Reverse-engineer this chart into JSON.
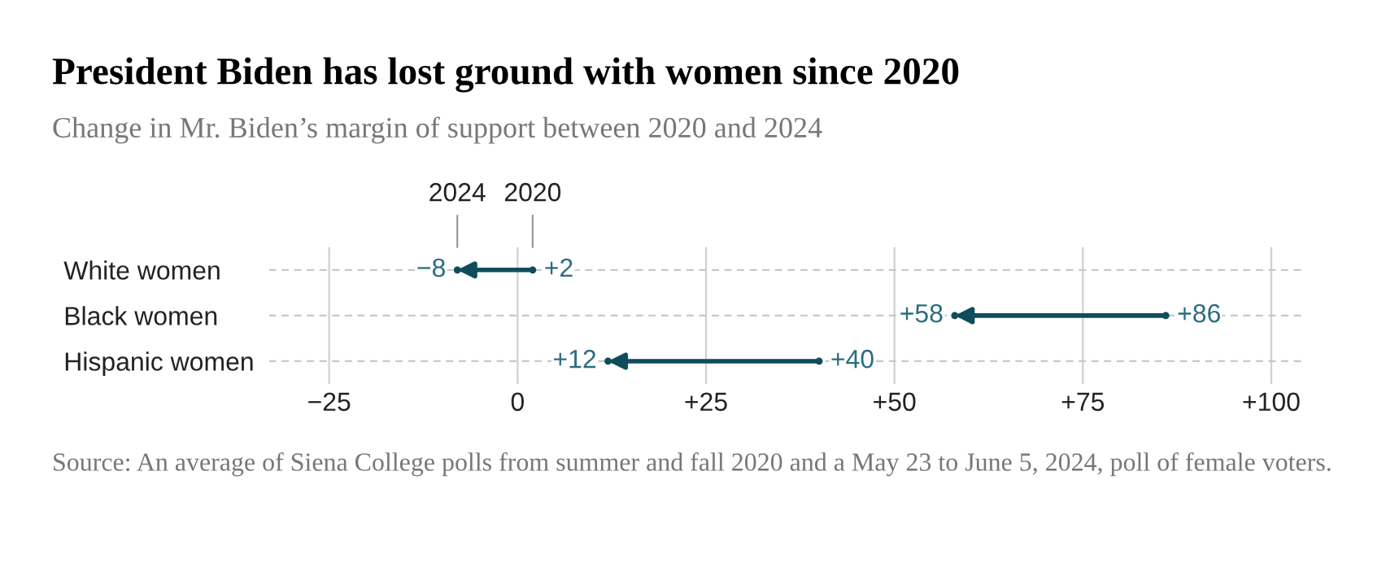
{
  "chart_data": {
    "type": "scatter",
    "title": "President Biden has lost ground with women since 2020",
    "subtitle": "Change in Mr. Biden’s margin of support between 2020 and 2024",
    "categories": [
      "White women",
      "Black women",
      "Hispanic women"
    ],
    "series": [
      {
        "name": "2020",
        "color": "#0f4c5c",
        "values": [
          2,
          86,
          40
        ],
        "value_labels": [
          "+2",
          "+86",
          "+40"
        ]
      },
      {
        "name": "2024",
        "color": "#0f4c5c",
        "values": [
          -8,
          58,
          12
        ],
        "value_labels": [
          "−8",
          "+58",
          "+12"
        ]
      }
    ],
    "orientation": "horizontal",
    "grid": true,
    "legend": false,
    "xlim": [
      -33,
      104
    ],
    "xticks": [
      {
        "value": -25,
        "label": "−25"
      },
      0,
      {
        "value": 25,
        "label": "+25"
      },
      {
        "value": 50,
        "label": "+50"
      },
      {
        "value": 75,
        "label": "+75"
      },
      {
        "value": 100,
        "label": "+100"
      }
    ],
    "annotations": [
      "Source: An average of Siena College polls from summer and fall 2020 and a May 23 to June 5, 2024, poll of female voters."
    ]
  }
}
